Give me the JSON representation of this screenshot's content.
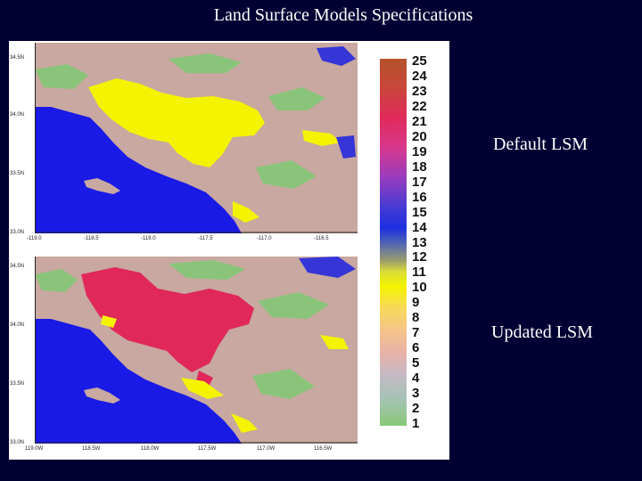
{
  "slide": {
    "title": "Land Surface Models Specifications"
  },
  "maps": {
    "top": {
      "label": "Default LSM",
      "lat_ticks": [
        "34.5N",
        "34.0N",
        "33.5N",
        "33.0N"
      ],
      "lon_ticks": [
        "-119.0",
        "-118.5",
        "-118.0",
        "-117.5",
        "-117.0",
        "-116.5"
      ]
    },
    "bottom": {
      "label": "Updated LSM",
      "lat_ticks": [
        "34.5N",
        "34.0N",
        "33.5N",
        "33.0N"
      ],
      "lon_ticks": [
        "119.0W",
        "118.5W",
        "118.0W",
        "117.5W",
        "117.0W",
        "116.5W"
      ]
    }
  },
  "colorbar": {
    "labels": [
      "25",
      "24",
      "23",
      "22",
      "21",
      "20",
      "19",
      "18",
      "17",
      "16",
      "15",
      "14",
      "13",
      "12",
      "11",
      "10",
      "9",
      "8",
      "7",
      "6",
      "5",
      "4",
      "3",
      "2",
      "1"
    ]
  },
  "colors": {
    "background": "#000033",
    "ocean": "#1a1ae6",
    "urban_yellow": "#f4f400",
    "urban_red": "#e0285a",
    "land_base": "#c8a8a0",
    "grass": "#8ac47a"
  }
}
